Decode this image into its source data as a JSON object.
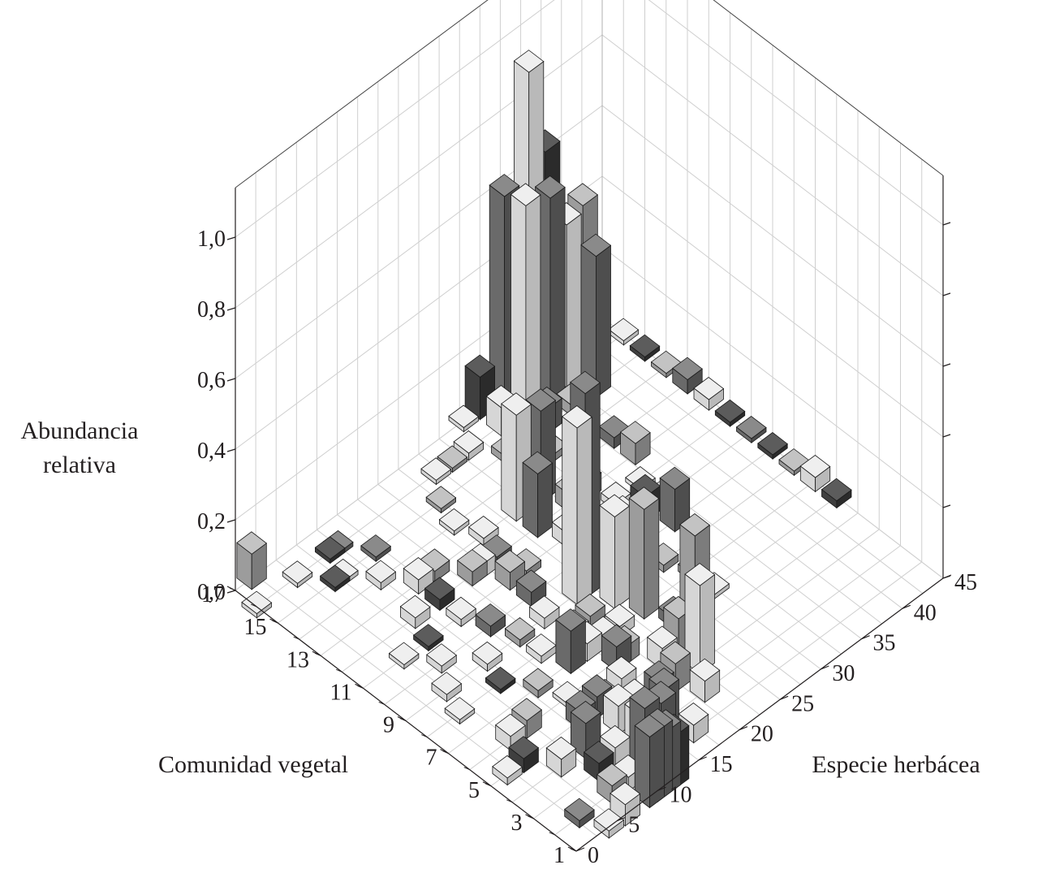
{
  "chart_data": {
    "type": "bar3d",
    "ylabel_lines": [
      "Abundancia",
      "relativa"
    ],
    "xlabel": "Comunidad vegetal",
    "zlabel": "Especie herbácea",
    "vertical_ticks": [
      "0,0",
      "0,2",
      "0,4",
      "0,6",
      "0,8",
      "1,0"
    ],
    "vertical_range": [
      0,
      1.0
    ],
    "community_ticks": [
      "1",
      "3",
      "5",
      "7",
      "9",
      "11",
      "13",
      "15",
      "17"
    ],
    "community_range": [
      1,
      17
    ],
    "species_ticks": [
      "0",
      "5",
      "10",
      "15",
      "20",
      "25",
      "30",
      "35",
      "40",
      "45"
    ],
    "species_range": [
      0,
      45
    ],
    "grid": true,
    "colors": {
      "light": "#d8d8d8",
      "mid": "#9a9a9a",
      "dark": "#686868",
      "darkest": "#3d3d3d"
    },
    "bars": [
      {
        "community": 17,
        "species": 2,
        "value": 0.1,
        "shade": "mid"
      },
      {
        "community": 16,
        "species": 0,
        "value": 0.01,
        "shade": "light"
      },
      {
        "community": 16,
        "species": 5,
        "value": 0.01,
        "shade": "light"
      },
      {
        "community": 15,
        "species": 7,
        "value": 0.01,
        "shade": "darkest"
      },
      {
        "community": 16,
        "species": 9,
        "value": 0.01,
        "shade": "darkest"
      },
      {
        "community": 16,
        "species": 10,
        "value": 0.01,
        "shade": "dark"
      },
      {
        "community": 15,
        "species": 8,
        "value": 0.01,
        "shade": "light"
      },
      {
        "community": 14,
        "species": 10,
        "value": 0.02,
        "shade": "light"
      },
      {
        "community": 15,
        "species": 12,
        "value": 0.01,
        "shade": "dark"
      },
      {
        "community": 13,
        "species": 14,
        "value": 0.03,
        "shade": "mid"
      },
      {
        "community": 12,
        "species": 17,
        "value": 0.04,
        "shade": "light"
      },
      {
        "community": 11,
        "species": 20,
        "value": 0.02,
        "shade": "mid"
      },
      {
        "community": 14,
        "species": 19,
        "value": 0.01,
        "shade": "light"
      },
      {
        "community": 15,
        "species": 20,
        "value": 0.01,
        "shade": "mid"
      },
      {
        "community": 16,
        "species": 22,
        "value": 0.01,
        "shade": "light"
      },
      {
        "community": 16,
        "species": 24,
        "value": 0.01,
        "shade": "mid"
      },
      {
        "community": 16,
        "species": 26,
        "value": 0.02,
        "shade": "light"
      },
      {
        "community": 17,
        "species": 28,
        "value": 0.01,
        "shade": "light"
      },
      {
        "community": 15,
        "species": 28,
        "value": 0.02,
        "shade": "mid"
      },
      {
        "community": 17,
        "species": 30,
        "value": 0.12,
        "shade": "darkest"
      },
      {
        "community": 16,
        "species": 30,
        "value": 0.08,
        "shade": "light"
      },
      {
        "community": 15,
        "species": 31,
        "value": 0.04,
        "shade": "dark"
      },
      {
        "community": 14,
        "species": 31,
        "value": 0.02,
        "shade": "mid"
      },
      {
        "community": 17,
        "species": 33,
        "value": 0.58,
        "shade": "dark"
      },
      {
        "community": 16,
        "species": 33,
        "value": 0.6,
        "shade": "light"
      },
      {
        "community": 15,
        "species": 33,
        "value": 0.07,
        "shade": "dark"
      },
      {
        "community": 17,
        "species": 36,
        "value": 0.88,
        "shade": "light"
      },
      {
        "community": 16,
        "species": 36,
        "value": 0.57,
        "shade": "dark"
      },
      {
        "community": 15,
        "species": 36,
        "value": 0.03,
        "shade": "mid"
      },
      {
        "community": 17,
        "species": 38,
        "value": 0.62,
        "shade": "darkest"
      },
      {
        "community": 16,
        "species": 38,
        "value": 0.46,
        "shade": "light"
      },
      {
        "community": 15,
        "species": 39,
        "value": 0.4,
        "shade": "dark"
      },
      {
        "community": 16,
        "species": 40,
        "value": 0.48,
        "shade": "mid"
      },
      {
        "community": 17,
        "species": 41,
        "value": 0.02,
        "shade": "mid"
      },
      {
        "community": 17,
        "species": 44,
        "value": 0.01,
        "shade": "darkest"
      },
      {
        "community": 16,
        "species": 45,
        "value": 0.01,
        "shade": "light"
      },
      {
        "community": 15,
        "species": 45,
        "value": 0.01,
        "shade": "darkest"
      },
      {
        "community": 14,
        "species": 45,
        "value": 0.01,
        "shade": "mid"
      },
      {
        "community": 13,
        "species": 45,
        "value": 0.04,
        "shade": "dark"
      },
      {
        "community": 12,
        "species": 45,
        "value": 0.03,
        "shade": "light"
      },
      {
        "community": 11,
        "species": 45,
        "value": 0.01,
        "shade": "darkest"
      },
      {
        "community": 10,
        "species": 45,
        "value": 0.01,
        "shade": "dark"
      },
      {
        "community": 9,
        "species": 45,
        "value": 0.01,
        "shade": "darkest"
      },
      {
        "community": 8,
        "species": 45,
        "value": 0.01,
        "shade": "mid"
      },
      {
        "community": 7,
        "species": 45,
        "value": 0.04,
        "shade": "light"
      },
      {
        "community": 6,
        "species": 45,
        "value": 0.02,
        "shade": "darkest"
      },
      {
        "community": 13,
        "species": 36,
        "value": 0.03,
        "shade": "dark"
      },
      {
        "community": 12,
        "species": 36,
        "value": 0.06,
        "shade": "mid"
      },
      {
        "community": 11,
        "species": 34,
        "value": 0.01,
        "shade": "light"
      },
      {
        "community": 12,
        "species": 30,
        "value": 0.05,
        "shade": "mid"
      },
      {
        "community": 11,
        "species": 31,
        "value": 0.02,
        "shade": "light"
      },
      {
        "community": 10,
        "species": 32,
        "value": 0.07,
        "shade": "darkest"
      },
      {
        "community": 9,
        "species": 33,
        "value": 0.12,
        "shade": "dark"
      },
      {
        "community": 10,
        "species": 35,
        "value": 0.02,
        "shade": "light"
      },
      {
        "community": 11,
        "species": 27,
        "value": 0.02,
        "shade": "dark"
      },
      {
        "community": 10,
        "species": 27,
        "value": 0.04,
        "shade": "dark"
      },
      {
        "community": 13,
        "species": 27,
        "value": 0.26,
        "shade": "dark"
      },
      {
        "community": 14,
        "species": 29,
        "value": 0.15,
        "shade": "gradient"
      },
      {
        "community": 12,
        "species": 28,
        "value": 0.05,
        "shade": "mid"
      },
      {
        "community": 13,
        "species": 24,
        "value": 0.3,
        "shade": "light"
      },
      {
        "community": 12,
        "species": 24,
        "value": 0.18,
        "shade": "dark"
      },
      {
        "community": 11,
        "species": 25,
        "value": 0.04,
        "shade": "light"
      },
      {
        "community": 10,
        "species": 24,
        "value": 0.03,
        "shade": "mid"
      },
      {
        "community": 9,
        "species": 25,
        "value": 0.03,
        "shade": "light"
      },
      {
        "community": 8,
        "species": 26,
        "value": 0.02,
        "shade": "light"
      },
      {
        "community": 9,
        "species": 29,
        "value": 0.03,
        "shade": "darkest"
      },
      {
        "community": 8,
        "species": 29,
        "value": 0.02,
        "shade": "mid"
      },
      {
        "community": 7,
        "species": 30,
        "value": 0.02,
        "shade": "mid"
      },
      {
        "community": 6,
        "species": 30,
        "value": 0.01,
        "shade": "light"
      },
      {
        "community": 13,
        "species": 20,
        "value": 0.02,
        "shade": "light"
      },
      {
        "community": 12,
        "species": 19,
        "value": 0.03,
        "shade": "dark"
      },
      {
        "community": 11,
        "species": 18,
        "value": 0.05,
        "shade": "mid"
      },
      {
        "community": 10,
        "species": 18,
        "value": 0.04,
        "shade": "dark"
      },
      {
        "community": 9,
        "species": 17,
        "value": 0.03,
        "shade": "light"
      },
      {
        "community": 8,
        "species": 18,
        "value": 0.02,
        "shade": "mid"
      },
      {
        "community": 7,
        "species": 19,
        "value": 0.03,
        "shade": "light"
      },
      {
        "community": 12,
        "species": 16,
        "value": 0.04,
        "shade": "mid"
      },
      {
        "community": 13,
        "species": 12,
        "value": 0.04,
        "shade": "light"
      },
      {
        "community": 12,
        "species": 12,
        "value": 0.03,
        "shade": "darkest"
      },
      {
        "community": 11,
        "species": 12,
        "value": 0.02,
        "shade": "light"
      },
      {
        "community": 10,
        "species": 13,
        "value": 0.03,
        "shade": "dark"
      },
      {
        "community": 9,
        "species": 14,
        "value": 0.02,
        "shade": "mid"
      },
      {
        "community": 8,
        "species": 14,
        "value": 0.02,
        "shade": "light"
      },
      {
        "community": 12,
        "species": 9,
        "value": 0.03,
        "shade": "light"
      },
      {
        "community": 11,
        "species": 8,
        "value": 0.01,
        "shade": "darkest"
      },
      {
        "community": 10,
        "species": 7,
        "value": 0.02,
        "shade": "light"
      },
      {
        "community": 9,
        "species": 10,
        "value": 0.02,
        "shade": "light"
      },
      {
        "community": 8,
        "species": 9,
        "value": 0.01,
        "shade": "darkest"
      },
      {
        "community": 7,
        "species": 11,
        "value": 0.02,
        "shade": "mid"
      },
      {
        "community": 6,
        "species": 12,
        "value": 0.01,
        "shade": "light"
      },
      {
        "community": 11,
        "species": 5,
        "value": 0.01,
        "shade": "light"
      },
      {
        "community": 9,
        "species": 5,
        "value": 0.02,
        "shade": "light"
      },
      {
        "community": 8,
        "species": 4,
        "value": 0.01,
        "shade": "light"
      },
      {
        "community": 9,
        "species": 21,
        "value": 0.5,
        "shade": "light"
      },
      {
        "community": 9,
        "species": 22,
        "value": 0.58,
        "shade": "dark"
      },
      {
        "community": 8,
        "species": 23,
        "value": 0.26,
        "shade": "light"
      },
      {
        "community": 8,
        "species": 24,
        "value": 0.24,
        "shade": "light"
      },
      {
        "community": 7,
        "species": 24,
        "value": 0.31,
        "shade": "mid"
      },
      {
        "community": 8,
        "species": 20,
        "value": 0.03,
        "shade": "mid"
      },
      {
        "community": 7,
        "species": 21,
        "value": 0.03,
        "shade": "light"
      },
      {
        "community": 6,
        "species": 25,
        "value": 0.03,
        "shade": "dark"
      },
      {
        "community": 5,
        "species": 25,
        "value": 0.31,
        "shade": "mid"
      },
      {
        "community": 5,
        "species": 23,
        "value": 0.11,
        "shade": "mid"
      },
      {
        "community": 4,
        "species": 23,
        "value": 0.25,
        "shade": "light"
      },
      {
        "community": 5,
        "species": 21,
        "value": 0.06,
        "shade": "light"
      },
      {
        "community": 7,
        "species": 17,
        "value": 0.05,
        "shade": "light"
      },
      {
        "community": 6,
        "species": 18,
        "value": 0.07,
        "shade": "dark"
      },
      {
        "community": 6,
        "species": 19,
        "value": 0.05,
        "shade": "mid"
      },
      {
        "community": 7,
        "species": 15,
        "value": 0.12,
        "shade": "dark"
      },
      {
        "community": 5,
        "species": 16,
        "value": 0.06,
        "shade": "light"
      },
      {
        "community": 4,
        "species": 18,
        "value": 0.06,
        "shade": "dark"
      },
      {
        "community": 4,
        "species": 20,
        "value": 0.08,
        "shade": "mid"
      },
      {
        "community": 3,
        "species": 21,
        "value": 0.06,
        "shade": "light"
      },
      {
        "community": 3,
        "species": 16,
        "value": 0.12,
        "shade": "dark"
      },
      {
        "community": 2,
        "species": 17,
        "value": 0.05,
        "shade": "light"
      },
      {
        "community": 3,
        "species": 13,
        "value": 0.1,
        "shade": "light"
      },
      {
        "community": 2,
        "species": 13,
        "value": 0.18,
        "shade": "dark"
      },
      {
        "community": 2,
        "species": 11,
        "value": 0.2,
        "shade": "dark"
      },
      {
        "community": 1,
        "species": 12,
        "value": 0.15,
        "shade": "darkest"
      },
      {
        "community": 1,
        "species": 11,
        "value": 0.18,
        "shade": "dark"
      },
      {
        "community": 1,
        "species": 10,
        "value": 0.2,
        "shade": "dark"
      },
      {
        "community": 1,
        "species": 9,
        "value": 0.2,
        "shade": "dark"
      },
      {
        "community": 2,
        "species": 9,
        "value": 0.04,
        "shade": "light"
      },
      {
        "community": 2,
        "species": 7,
        "value": 0.05,
        "shade": "mid"
      },
      {
        "community": 1,
        "species": 6,
        "value": 0.06,
        "shade": "light"
      },
      {
        "community": 1,
        "species": 4,
        "value": 0.02,
        "shade": "light"
      },
      {
        "community": 2,
        "species": 3,
        "value": 0.02,
        "shade": "dark"
      },
      {
        "community": 3,
        "species": 8,
        "value": 0.05,
        "shade": "darkest"
      },
      {
        "community": 3,
        "species": 10,
        "value": 0.06,
        "shade": "light"
      },
      {
        "community": 4,
        "species": 9,
        "value": 0.1,
        "shade": "dark"
      },
      {
        "community": 4,
        "species": 13,
        "value": 0.08,
        "shade": "light"
      },
      {
        "community": 5,
        "species": 11,
        "value": 0.05,
        "shade": "dark"
      },
      {
        "community": 5,
        "species": 13,
        "value": 0.06,
        "shade": "dark"
      },
      {
        "community": 4,
        "species": 6,
        "value": 0.05,
        "shade": "light"
      },
      {
        "community": 5,
        "species": 4,
        "value": 0.04,
        "shade": "darkest"
      },
      {
        "community": 6,
        "species": 7,
        "value": 0.05,
        "shade": "mid"
      },
      {
        "community": 5,
        "species": 2,
        "value": 0.02,
        "shade": "light"
      },
      {
        "community": 6,
        "species": 5,
        "value": 0.04,
        "shade": "light"
      },
      {
        "community": 5,
        "species": 14,
        "value": 0.03,
        "shade": "mid"
      },
      {
        "community": 4,
        "species": 15,
        "value": 0.06,
        "shade": "light"
      }
    ]
  }
}
